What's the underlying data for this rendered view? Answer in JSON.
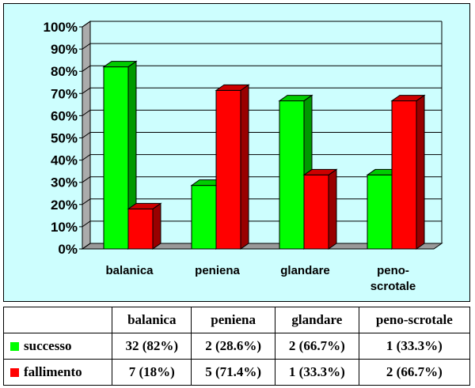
{
  "chart_data": {
    "type": "bar",
    "categories": [
      "balanica",
      "peniena",
      "glandare",
      "peno-scrotale"
    ],
    "category_lines": [
      [
        "balanica"
      ],
      [
        "peniena"
      ],
      [
        "glandare"
      ],
      [
        "peno-",
        "scrotale"
      ]
    ],
    "series": [
      {
        "name": "successo",
        "values": [
          82,
          28.6,
          66.7,
          33.3
        ],
        "color": "#00ff00",
        "side_color": "#009900",
        "top_color": "#00cc00"
      },
      {
        "name": "fallimento",
        "values": [
          18,
          71.4,
          33.3,
          66.7
        ],
        "color": "#ff0000",
        "side_color": "#990000",
        "top_color": "#cc0000"
      }
    ],
    "y_ticks": [
      "0%",
      "10%",
      "20%",
      "30%",
      "40%",
      "50%",
      "60%",
      "70%",
      "80%",
      "90%",
      "100%"
    ],
    "ylim": [
      0,
      100
    ],
    "title": "",
    "xlabel": "",
    "ylabel": ""
  },
  "table": {
    "headers": [
      "",
      "balanica",
      "peniena",
      "glandare",
      "peno-scrotale"
    ],
    "rows": [
      {
        "label": "successo",
        "color": "#00ff00",
        "cells": [
          "32 (82%)",
          "2 (28.6%)",
          "2 (66.7%)",
          "1 (33.3%)"
        ]
      },
      {
        "label": "fallimento",
        "color": "#ff0000",
        "cells": [
          "7 (18%)",
          "5 (71.4%)",
          "1 (33.3%)",
          "2 (66.7%)"
        ]
      }
    ]
  }
}
